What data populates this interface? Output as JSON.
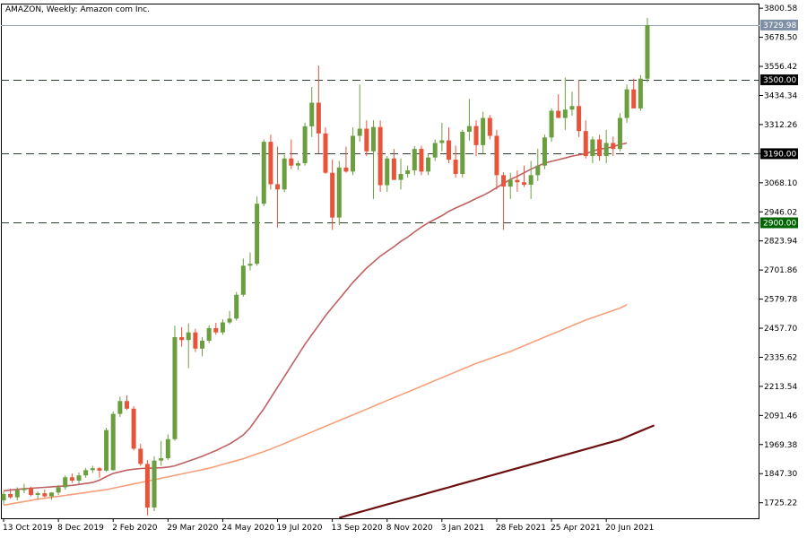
{
  "chart_data": {
    "type": "candlestick",
    "title": "AMAZON, Weekly:  Amazon com Inc.",
    "symbol": "AMAZON",
    "timeframe": "Weekly",
    "description": "Amazon com Inc.",
    "y_ticks": [
      3800.58,
      3678.5,
      3556.42,
      3434.34,
      3312.26,
      3190.18,
      3068.1,
      2946.02,
      2823.94,
      2701.86,
      2579.78,
      2457.7,
      2335.62,
      2213.54,
      2091.46,
      1969.38,
      1847.3,
      1725.22
    ],
    "y_tick_labels": [
      "3800.58",
      "3678.50",
      "3556.42",
      "3434.34",
      "3312.26",
      "3190.18",
      "3068.10",
      "2946.02",
      "2823.94",
      "2701.86",
      "2579.78",
      "2457.70",
      "2335.62",
      "2213.54",
      "2091.46",
      "1969.38",
      "1847.30",
      "1725.22"
    ],
    "x_tick_labels": [
      "13 Oct 2019",
      "8 Dec 2019",
      "2 Feb 2020",
      "29 Mar 2020",
      "24 May 2020",
      "19 Jul 2020",
      "13 Sep 2020",
      "8 Nov 2020",
      "3 Jan 2021",
      "28 Feb 2021",
      "25 Apr 2021",
      "20 Jun 2021"
    ],
    "x_tick_bar_index": [
      0,
      8,
      16,
      24,
      32,
      40,
      48,
      56,
      64,
      72,
      80,
      88
    ],
    "ylim": [
      1660,
      3820
    ],
    "current_price": {
      "value": 3729.98,
      "label": "3729.98",
      "color": "#7f8fa6"
    },
    "levels": [
      {
        "value": 3500.0,
        "label": "3500.00",
        "color": "#000000"
      },
      {
        "value": 3190.0,
        "label": "3190.00",
        "color": "#000000"
      },
      {
        "value": 2900.0,
        "label": "2900.00",
        "color": "#006400"
      }
    ],
    "colors": {
      "up": "#6b9e3f",
      "down": "#e8543a",
      "grid_dash": "#2f3f2f"
    },
    "candles": [
      [
        1735,
        1772,
        1718,
        1762
      ],
      [
        1762,
        1785,
        1742,
        1748
      ],
      [
        1748,
        1790,
        1735,
        1778
      ],
      [
        1778,
        1805,
        1765,
        1785
      ],
      [
        1785,
        1792,
        1752,
        1758
      ],
      [
        1758,
        1772,
        1740,
        1765
      ],
      [
        1765,
        1780,
        1748,
        1752
      ],
      [
        1752,
        1770,
        1738,
        1768
      ],
      [
        1768,
        1800,
        1758,
        1790
      ],
      [
        1790,
        1840,
        1780,
        1832
      ],
      [
        1832,
        1848,
        1808,
        1818
      ],
      [
        1818,
        1852,
        1805,
        1840
      ],
      [
        1840,
        1872,
        1830,
        1862
      ],
      [
        1862,
        1880,
        1850,
        1870
      ],
      [
        1870,
        1875,
        1830,
        1860
      ],
      [
        1860,
        2040,
        1855,
        2030
      ],
      [
        1862,
        2108,
        1860,
        2098
      ],
      [
        2098,
        2170,
        2085,
        2152
      ],
      [
        2152,
        2176,
        2115,
        2120
      ],
      [
        2120,
        2130,
        1945,
        1952
      ],
      [
        1952,
        1972,
        1880,
        1888
      ],
      [
        1888,
        1905,
        1672,
        1705
      ],
      [
        1705,
        1920,
        1690,
        1902
      ],
      [
        1902,
        1985,
        1880,
        1912
      ],
      [
        1912,
        2012,
        1905,
        1992
      ],
      [
        1992,
        2468,
        1985,
        2420
      ],
      [
        2420,
        2462,
        2380,
        2408
      ],
      [
        2408,
        2478,
        2290,
        2440
      ],
      [
        2440,
        2455,
        2358,
        2372
      ],
      [
        2372,
        2420,
        2340,
        2405
      ],
      [
        2405,
        2470,
        2395,
        2458
      ],
      [
        2458,
        2480,
        2430,
        2440
      ],
      [
        2440,
        2495,
        2430,
        2482
      ],
      [
        2482,
        2530,
        2475,
        2498
      ],
      [
        2498,
        2610,
        2490,
        2598
      ],
      [
        2598,
        2750,
        2590,
        2720
      ],
      [
        2720,
        2775,
        2700,
        2728
      ],
      [
        2728,
        3010,
        2720,
        2980
      ],
      [
        2980,
        3250,
        2970,
        3240
      ],
      [
        3240,
        3270,
        3040,
        3062
      ],
      [
        3062,
        3220,
        2880,
        3040
      ],
      [
        3040,
        3185,
        3030,
        3170
      ],
      [
        3170,
        3250,
        3125,
        3140
      ],
      [
        3140,
        3160,
        3122,
        3150
      ],
      [
        3150,
        3320,
        3140,
        3305
      ],
      [
        3305,
        3470,
        3260,
        3404
      ],
      [
        3404,
        3560,
        3190,
        3275
      ],
      [
        3275,
        3300,
        3105,
        3110
      ],
      [
        3110,
        3165,
        2870,
        2922
      ],
      [
        2922,
        3160,
        2890,
        3132
      ],
      [
        3132,
        3220,
        3110,
        3115
      ],
      [
        3115,
        3300,
        3100,
        3265
      ],
      [
        3265,
        3480,
        3240,
        3295
      ],
      [
        3295,
        3330,
        3180,
        3200
      ],
      [
        3200,
        3330,
        3000,
        3302
      ],
      [
        3302,
        3330,
        3030,
        3058
      ],
      [
        3058,
        3180,
        3030,
        3170
      ],
      [
        3170,
        3210,
        3080,
        3080
      ],
      [
        3080,
        3170,
        3040,
        3105
      ],
      [
        3105,
        3140,
        3090,
        3120
      ],
      [
        3120,
        3222,
        3100,
        3210
      ],
      [
        3210,
        3223,
        3100,
        3115
      ],
      [
        3115,
        3190,
        3100,
        3174
      ],
      [
        3174,
        3250,
        3160,
        3235
      ],
      [
        3235,
        3320,
        3200,
        3246
      ],
      [
        3246,
        3300,
        3150,
        3165
      ],
      [
        3165,
        3224,
        3090,
        3105
      ],
      [
        3105,
        3290,
        3090,
        3282
      ],
      [
        3282,
        3420,
        3245,
        3306
      ],
      [
        3306,
        3330,
        3180,
        3226
      ],
      [
        3226,
        3366,
        3190,
        3340
      ],
      [
        3340,
        3352,
        3250,
        3265
      ],
      [
        3265,
        3290,
        3040,
        3100
      ],
      [
        3100,
        3112,
        2870,
        3052
      ],
      [
        3052,
        3110,
        3000,
        3080
      ],
      [
        3080,
        3120,
        3030,
        3070
      ],
      [
        3070,
        3140,
        3050,
        3060
      ],
      [
        3060,
        3160,
        3000,
        3100
      ],
      [
        3100,
        3210,
        3075,
        3140
      ],
      [
        3140,
        3270,
        3125,
        3258
      ],
      [
        3258,
        3380,
        3240,
        3370
      ],
      [
        3370,
        3440,
        3340,
        3340
      ],
      [
        3340,
        3510,
        3290,
        3375
      ],
      [
        3375,
        3450,
        3350,
        3390
      ],
      [
        3390,
        3500,
        3260,
        3285
      ],
      [
        3285,
        3330,
        3170,
        3180
      ],
      [
        3180,
        3262,
        3150,
        3250
      ],
      [
        3250,
        3270,
        3160,
        3180
      ],
      [
        3180,
        3290,
        3150,
        3235
      ],
      [
        3235,
        3262,
        3180,
        3210
      ],
      [
        3210,
        3360,
        3200,
        3340
      ],
      [
        3340,
        3480,
        3320,
        3460
      ],
      [
        3460,
        3505,
        3380,
        3380
      ],
      [
        3380,
        3520,
        3370,
        3505
      ],
      [
        3505,
        3760,
        3490,
        3729.98
      ]
    ],
    "moving_averages": [
      {
        "color": "#c06060",
        "width": 1.6,
        "values": [
          1775,
          1778,
          1781,
          1784,
          1786,
          1788,
          1790,
          1792,
          1794,
          1796,
          1798,
          1802,
          1806,
          1810,
          1820,
          1835,
          1848,
          1855,
          1862,
          1866,
          1869,
          1870,
          1871,
          1872,
          1875,
          1880,
          1890,
          1900,
          1910,
          1920,
          1932,
          1944,
          1958,
          1972,
          1990,
          2010,
          2040,
          2080,
          2120,
          2165,
          2210,
          2255,
          2300,
          2345,
          2390,
          2430,
          2470,
          2510,
          2545,
          2580,
          2615,
          2650,
          2680,
          2710,
          2735,
          2760,
          2780,
          2800,
          2822,
          2840,
          2862,
          2882,
          2900,
          2915,
          2930,
          2948,
          2962,
          2975,
          2988,
          3002,
          3015,
          3030,
          3048,
          3065,
          3082,
          3095,
          3110,
          3125,
          3138,
          3150,
          3158,
          3165,
          3172,
          3180,
          3185,
          3190,
          3200,
          3210,
          3212,
          3220,
          3228,
          3235
        ]
      },
      {
        "color": "#f5a07a",
        "width": 1.6,
        "values": [
          1715,
          1720,
          1725,
          1730,
          1735,
          1740,
          1744,
          1748,
          1752,
          1756,
          1760,
          1764,
          1768,
          1772,
          1776,
          1780,
          1786,
          1792,
          1798,
          1804,
          1810,
          1816,
          1822,
          1828,
          1834,
          1840,
          1846,
          1852,
          1858,
          1864,
          1870,
          1878,
          1886,
          1894,
          1902,
          1910,
          1920,
          1930,
          1940,
          1950,
          1962,
          1974,
          1986,
          1998,
          2010,
          2022,
          2034,
          2046,
          2058,
          2070,
          2082,
          2094,
          2106,
          2118,
          2130,
          2142,
          2154,
          2166,
          2178,
          2190,
          2202,
          2214,
          2226,
          2238,
          2250,
          2262,
          2274,
          2286,
          2298,
          2310,
          2320,
          2330,
          2340,
          2350,
          2360,
          2372,
          2384,
          2396,
          2408,
          2420,
          2432,
          2444,
          2456,
          2468,
          2480,
          2492,
          2502,
          2512,
          2522,
          2532,
          2542,
          2556
        ]
      },
      {
        "color": "#6b0f0f",
        "width": 2.2,
        "start_index": 48,
        "values": [
          1655,
          1662,
          1670,
          1678,
          1686,
          1694,
          1702,
          1710,
          1718,
          1726,
          1734,
          1742,
          1750,
          1758,
          1766,
          1774,
          1782,
          1790,
          1798,
          1806,
          1814,
          1822,
          1830,
          1838,
          1846,
          1854,
          1862,
          1870,
          1878,
          1886,
          1894,
          1902,
          1910,
          1918,
          1926,
          1934,
          1942,
          1950,
          1958,
          1966,
          1974,
          1982,
          1990,
          2002,
          2014,
          2026,
          2038,
          2050
        ]
      }
    ]
  }
}
